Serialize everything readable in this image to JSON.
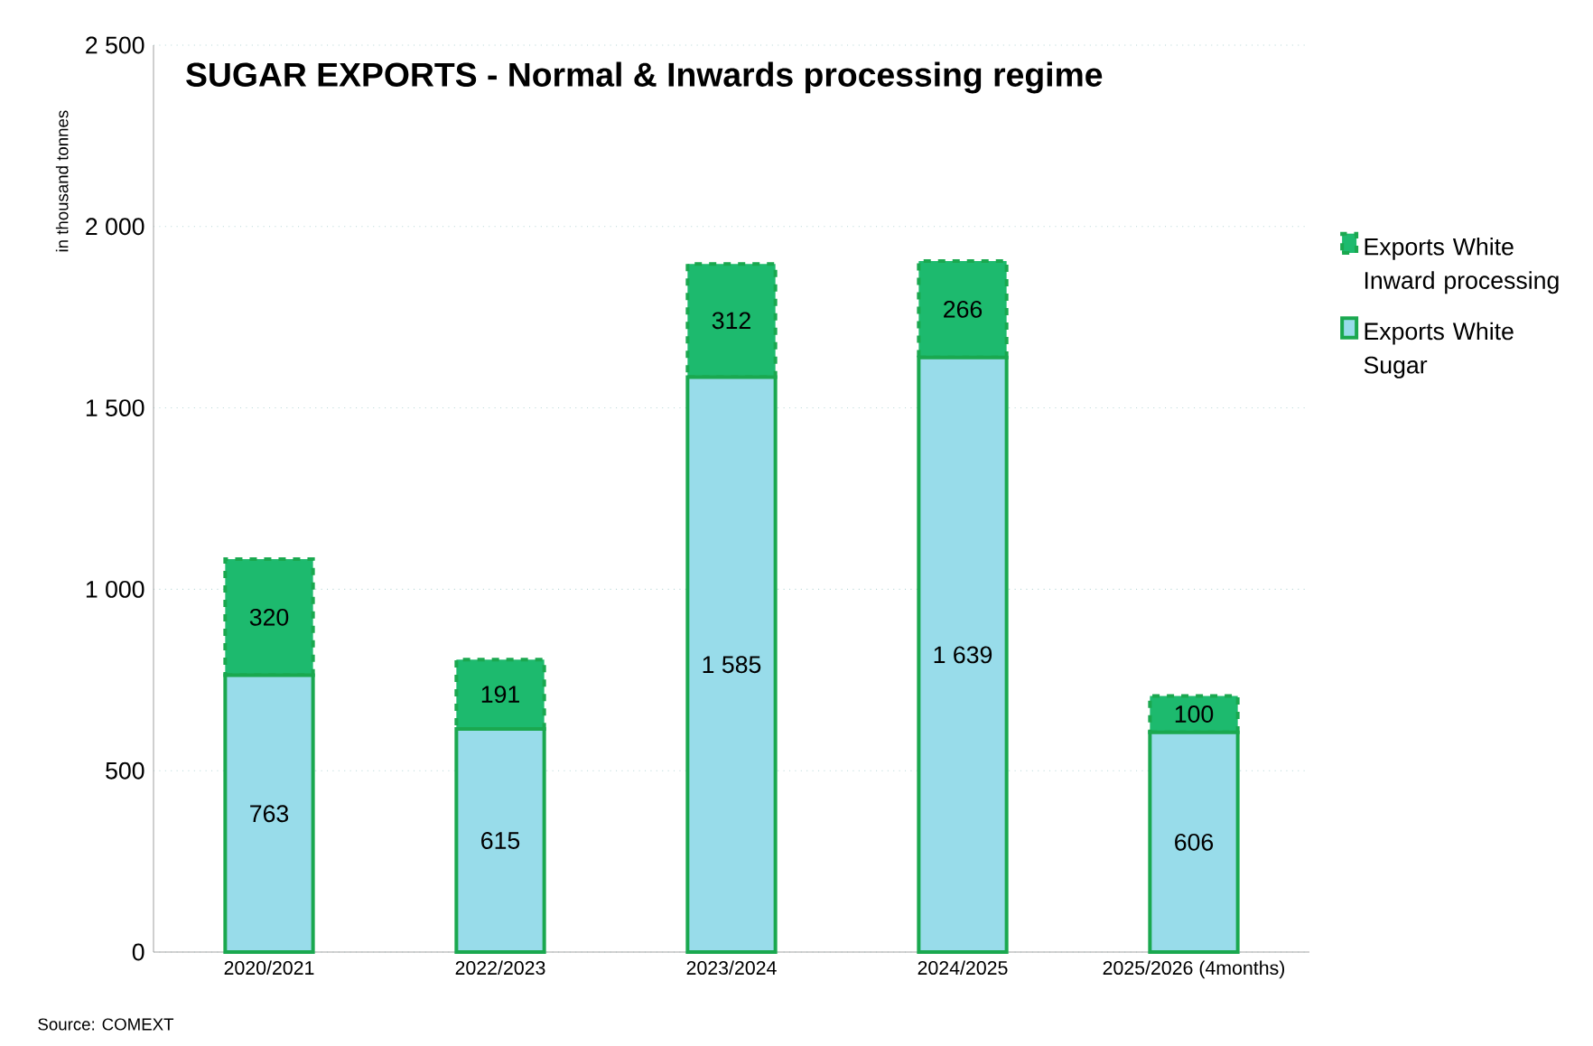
{
  "chart_data": {
    "type": "bar",
    "stacked": true,
    "title": "SUGAR EXPORTS - Normal & Inwards processing regime",
    "ylabel": "in thousand tonnes",
    "categories": [
      "2020/2021",
      "2022/2023",
      "2023/2024",
      "2024/2025",
      "2025/2026 (4months)"
    ],
    "series": [
      {
        "name": "Exports White Sugar",
        "color": "#98dcea",
        "line_style": "solid",
        "values": [
          763,
          615,
          1585,
          1639,
          606
        ],
        "value_labels": [
          "763",
          "615",
          "1 585",
          "1 639",
          "606"
        ]
      },
      {
        "name": "Exports White Inward processing",
        "color": "#1dba6e",
        "line_style": "dashed",
        "values": [
          320,
          191,
          312,
          266,
          100
        ],
        "value_labels": [
          "320",
          "191",
          "312",
          "266",
          "100"
        ]
      }
    ],
    "ylim": [
      0,
      2500
    ],
    "yticks": [
      0,
      500,
      {
        "value": 1000,
        "label": "1 000"
      },
      {
        "value": 1500,
        "label": "1 500"
      },
      {
        "value": 2000,
        "label": "2 000"
      },
      {
        "value": 2500,
        "label": "2 500"
      }
    ],
    "grid": "y",
    "legend": "right",
    "annotations": [
      "Source: COMEXT"
    ]
  }
}
